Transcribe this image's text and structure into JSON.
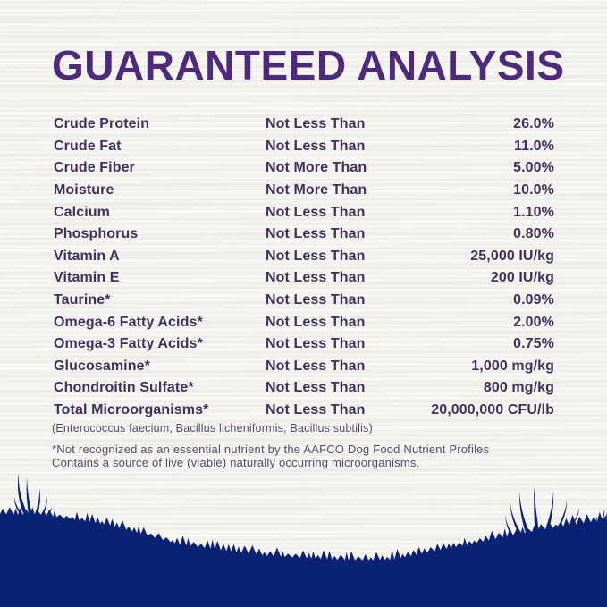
{
  "header": {
    "title": "GUARANTEED ANALYSIS"
  },
  "colors": {
    "title_purple": "#4e2a7d",
    "body_purple": "#43305a",
    "footnote_purple": "#564a69",
    "grass_navy": "#0b2173",
    "background": "#f2f1ec"
  },
  "analysis_table": {
    "rows": [
      {
        "nutrient": "Crude Protein",
        "qualifier": "Not Less Than",
        "value": "26.0%"
      },
      {
        "nutrient": "Crude Fat",
        "qualifier": "Not Less Than",
        "value": "11.0%"
      },
      {
        "nutrient": "Crude Fiber",
        "qualifier": "Not More Than",
        "value": "5.00%"
      },
      {
        "nutrient": "Moisture",
        "qualifier": "Not More Than",
        "value": "10.0%"
      },
      {
        "nutrient": "Calcium",
        "qualifier": "Not Less Than",
        "value": "1.10%"
      },
      {
        "nutrient": "Phosphorus",
        "qualifier": "Not Less Than",
        "value": "0.80%"
      },
      {
        "nutrient": "Vitamin A",
        "qualifier": "Not Less Than",
        "value": "25,000 IU/kg"
      },
      {
        "nutrient": "Vitamin E",
        "qualifier": "Not Less Than",
        "value": "200 IU/kg"
      },
      {
        "nutrient": "Taurine*",
        "qualifier": "Not Less Than",
        "value": "0.09%"
      },
      {
        "nutrient": "Omega-6 Fatty Acids*",
        "qualifier": "Not Less Than",
        "value": "2.00%"
      },
      {
        "nutrient": "Omega-3 Fatty Acids*",
        "qualifier": "Not Less Than",
        "value": "0.75%"
      },
      {
        "nutrient": "Glucosamine*",
        "qualifier": "Not Less Than",
        "value": "1,000 mg/kg"
      },
      {
        "nutrient": "Chondroitin Sulfate*",
        "qualifier": "Not Less Than",
        "value": "800 mg/kg"
      },
      {
        "nutrient": "Total Microorganisms*",
        "qualifier": "Not Less Than",
        "value": "20,000,000 CFU/lb"
      }
    ]
  },
  "footnotes": {
    "species": "(Enterococcus faecium, Bacillus licheniformis, Bacillus subtilis)",
    "aafco": "*Not recognized as an essential nutrient by the AAFCO Dog Food Nutrient Profiles",
    "live": "Contains a source of live (viable) naturally occurring microorganisms."
  }
}
